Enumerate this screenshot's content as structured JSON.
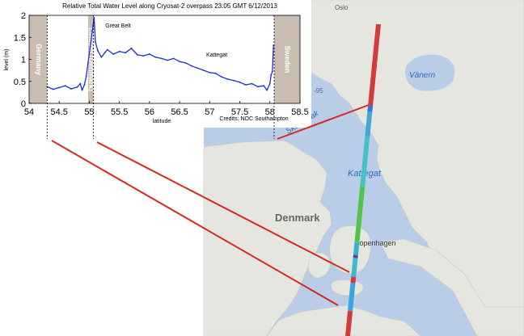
{
  "chart_data": {
    "type": "line",
    "title": "Relative Total Water Level along Cryosat-2 overpass 23:05 GMT 6/12/2013",
    "xlabel": "latitude",
    "ylabel": "level (m)",
    "xlim": [
      54,
      58.5
    ],
    "ylim": [
      0,
      2
    ],
    "x_ticks": [
      "54",
      "54.5",
      "55",
      "55.5",
      "56",
      "56.5",
      "57",
      "57.5",
      "58",
      "58.5"
    ],
    "y_ticks": [
      "0",
      "0.5",
      "1",
      "1.5",
      "2"
    ],
    "credits": "Credits: NOC Southampton",
    "land_bands": [
      {
        "label": "Germany",
        "from": 54.0,
        "to": 54.3
      },
      {
        "label": "Lolland (Denmark)",
        "from": 54.98,
        "to": 55.07
      },
      {
        "label": "Sweden",
        "from": 58.07,
        "to": 58.5
      }
    ],
    "annotations": [
      "Great Belt",
      "Kattegat"
    ],
    "series": [
      {
        "x": [
          54.3,
          54.4,
          54.5,
          54.6,
          54.7,
          54.8,
          54.85,
          54.88,
          54.92,
          54.95,
          55.08,
          55.1,
          55.14,
          55.2,
          55.3,
          55.4,
          55.5,
          55.6,
          55.7,
          55.8,
          55.9,
          56.0,
          56.1,
          56.2,
          56.3,
          56.4,
          56.5,
          56.6,
          56.7,
          56.8,
          56.9,
          57.0,
          57.1,
          57.2,
          57.3,
          57.4,
          57.5,
          57.6,
          57.7,
          57.8,
          57.9,
          57.95,
          58.0,
          58.02,
          58.04,
          58.06
        ],
        "y": [
          0.38,
          0.32,
          0.36,
          0.4,
          0.33,
          0.37,
          0.45,
          0.3,
          0.43,
          0.62,
          1.95,
          1.4,
          1.2,
          1.05,
          1.22,
          1.12,
          1.18,
          1.15,
          1.25,
          1.1,
          1.08,
          1.12,
          1.05,
          1.02,
          0.98,
          1.02,
          0.95,
          0.92,
          0.85,
          0.8,
          0.75,
          0.7,
          0.68,
          0.6,
          0.55,
          0.52,
          0.48,
          0.42,
          0.45,
          0.38,
          0.4,
          0.3,
          0.45,
          0.65,
          0.72,
          1.32
        ]
      }
    ]
  },
  "map": {
    "labels": {
      "oslo": "Oslo",
      "vanern": "Vänern",
      "skagerrak": "Skagerrak",
      "kattegat": "Kattegat",
      "denmark": "Denmark",
      "copenhagen": "Copenhagen",
      "depth": "-95"
    },
    "track_segments": [
      {
        "color": "#d43a3a",
        "t0": 0.0,
        "t1": 0.26
      },
      {
        "color": "#3f6fd0",
        "t0": 0.26,
        "t1": 0.28
      },
      {
        "color": "#41a7d9",
        "t0": 0.28,
        "t1": 0.36
      },
      {
        "color": "#44c2c7",
        "t0": 0.36,
        "t1": 0.52
      },
      {
        "color": "#55c24c",
        "t0": 0.52,
        "t1": 0.7
      },
      {
        "color": "#3db0c4",
        "t0": 0.7,
        "t1": 0.74
      },
      {
        "color": "#6a3f9e",
        "t0": 0.74,
        "t1": 0.75
      },
      {
        "color": "#44b8d1",
        "t0": 0.75,
        "t1": 0.81
      },
      {
        "color": "#d43a3a",
        "t0": 0.81,
        "t1": 0.83
      },
      {
        "color": "#3aa5e0",
        "t0": 0.83,
        "t1": 0.92
      },
      {
        "color": "#d43a3a",
        "t0": 0.92,
        "t1": 1.0
      }
    ]
  },
  "colors": {
    "series": "#1a2fd6",
    "land_band": "#c8bdb0",
    "connector": "#d42a1e",
    "sea": "#b9cde8",
    "land": "#e6e6e0"
  }
}
